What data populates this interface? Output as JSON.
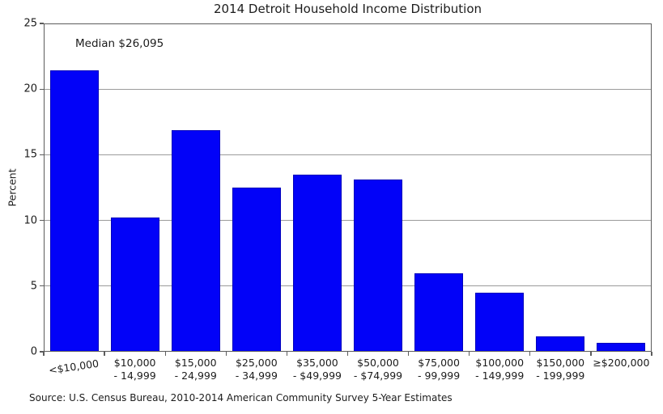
{
  "chart_data": {
    "type": "bar",
    "title": "2014 Detroit Household Income Distribution",
    "ylabel": "Percent",
    "xlabel": "",
    "ylim": [
      0,
      25
    ],
    "yticks": [
      0,
      5,
      10,
      15,
      20,
      25
    ],
    "grid": "horizontal",
    "legend": "none",
    "annotation": "Median $26,095",
    "source": "Source: U.S. Census Bureau, 2010-2014 American Community Survey 5-Year Estimates",
    "bar_color": "#0202f8",
    "categories": [
      [
        "<$10,000"
      ],
      [
        "$10,000",
        "- 14,999"
      ],
      [
        "$15,000",
        "- 24,999"
      ],
      [
        "$25,000",
        "- 34,999"
      ],
      [
        "$35,000",
        "- $49,999"
      ],
      [
        "$50,000",
        "- $74,999"
      ],
      [
        "$75,000",
        "- 99,999"
      ],
      [
        "$100,000",
        "- 149,999"
      ],
      [
        "$150,000",
        "- 199,999"
      ],
      [
        "≥$200,000"
      ]
    ],
    "values": [
      21.4,
      10.2,
      16.9,
      12.5,
      13.5,
      13.1,
      6.0,
      4.5,
      1.2,
      0.7
    ]
  }
}
